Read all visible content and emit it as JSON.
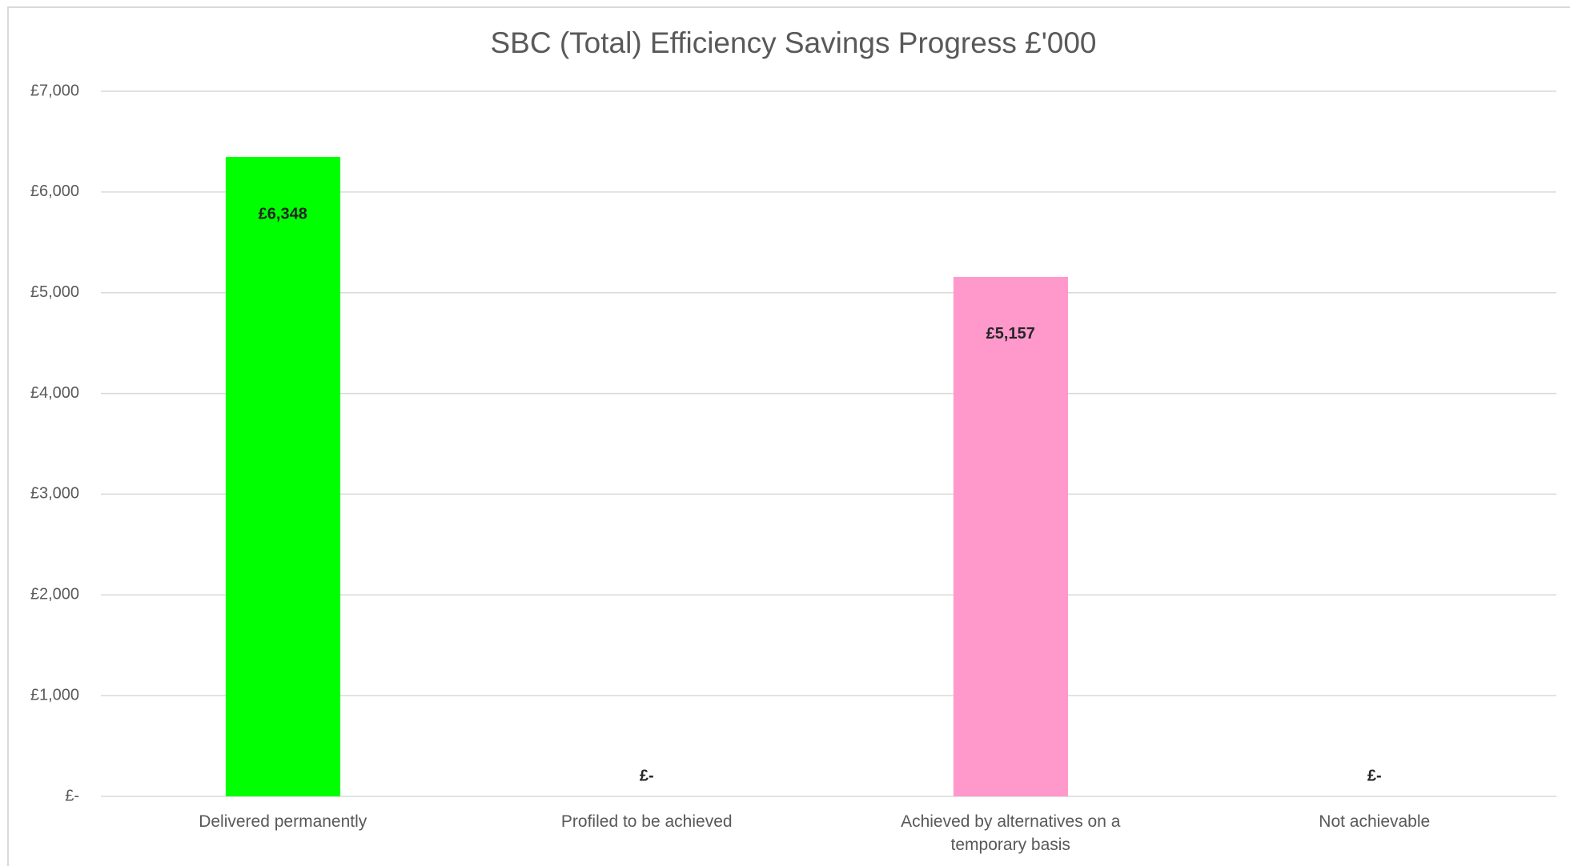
{
  "chart_data": {
    "type": "bar",
    "title": "SBC (Total) Efficiency Savings Progress £'000",
    "categories": [
      "Delivered permanently",
      "Profiled to be achieved",
      "Achieved by alternatives on a temporary basis",
      "Not achievable"
    ],
    "values": [
      6348,
      0,
      5157,
      0
    ],
    "value_labels": [
      "£6,348",
      "£-",
      "£5,157",
      "£-"
    ],
    "colors": [
      "#00ff00",
      null,
      "#ff99cc",
      null
    ],
    "ylim": [
      0,
      7000
    ],
    "yticks": [
      {
        "value": 0,
        "label": "£-"
      },
      {
        "value": 1000,
        "label": "£1,000"
      },
      {
        "value": 2000,
        "label": "£2,000"
      },
      {
        "value": 3000,
        "label": "£3,000"
      },
      {
        "value": 4000,
        "label": "£4,000"
      },
      {
        "value": 5000,
        "label": "£5,000"
      },
      {
        "value": 6000,
        "label": "£6,000"
      },
      {
        "value": 7000,
        "label": "£7,000"
      }
    ],
    "grid": true
  }
}
